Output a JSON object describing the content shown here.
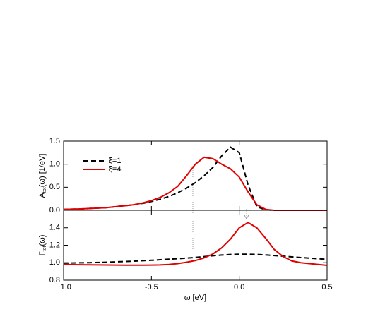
{
  "chart_data": [
    {
      "type": "line",
      "ylabel": {
        "main": "A",
        "sub": "tot",
        "rest": "(ω) [1/eV]"
      },
      "x": [
        -1.0,
        -0.95,
        -0.9,
        -0.85,
        -0.8,
        -0.75,
        -0.7,
        -0.65,
        -0.6,
        -0.55,
        -0.5,
        -0.45,
        -0.4,
        -0.35,
        -0.3,
        -0.25,
        -0.2,
        -0.15,
        -0.1,
        -0.05,
        0.0,
        0.05,
        0.1,
        0.15,
        0.2,
        0.25,
        0.3,
        0.35,
        0.4,
        0.45,
        0.5
      ],
      "series": [
        {
          "name": "ξ=1",
          "color": "#000000",
          "dash": true,
          "values": [
            0.02,
            0.025,
            0.03,
            0.04,
            0.05,
            0.06,
            0.08,
            0.1,
            0.12,
            0.15,
            0.19,
            0.24,
            0.3,
            0.38,
            0.48,
            0.6,
            0.75,
            0.93,
            1.18,
            1.37,
            1.25,
            0.55,
            0.08,
            0.01,
            0,
            0,
            0,
            0,
            0,
            0,
            0
          ]
        },
        {
          "name": "ξ=4",
          "color": "#e00000",
          "dash": false,
          "values": [
            0.02,
            0.025,
            0.03,
            0.04,
            0.05,
            0.06,
            0.08,
            0.1,
            0.12,
            0.16,
            0.21,
            0.28,
            0.38,
            0.52,
            0.75,
            1.0,
            1.15,
            1.12,
            1.0,
            0.9,
            0.72,
            0.4,
            0.12,
            0.02,
            0,
            0,
            0,
            0,
            0,
            0,
            0
          ]
        }
      ],
      "xlim": [
        -1.0,
        0.5
      ],
      "xticks": [
        {
          "value": -1,
          "label": "−1.0"
        },
        -0.5,
        {
          "value": 0,
          "label": "0.0"
        },
        0.5
      ],
      "ylim": [
        0,
        1.5
      ],
      "yticks": [
        {
          "value": 0,
          "label": "0.0"
        },
        0.5,
        {
          "value": 1,
          "label": "1.0"
        },
        1.5
      ],
      "legend": "upper left"
    },
    {
      "type": "line",
      "xlabel": "ω [eV]",
      "ylabel": {
        "main": "Γ",
        "sub": "tot",
        "rest": "(ω)"
      },
      "x": [
        -1.0,
        -0.95,
        -0.9,
        -0.85,
        -0.8,
        -0.75,
        -0.7,
        -0.65,
        -0.6,
        -0.55,
        -0.5,
        -0.45,
        -0.4,
        -0.35,
        -0.3,
        -0.25,
        -0.2,
        -0.15,
        -0.1,
        -0.05,
        0.0,
        0.05,
        0.1,
        0.15,
        0.2,
        0.25,
        0.3,
        0.35,
        0.4,
        0.45,
        0.5
      ],
      "series": [
        {
          "color": "#000000",
          "dash": true,
          "values": [
            0.995,
            0.997,
            0.999,
            1.0,
            1.003,
            1.006,
            1.01,
            1.014,
            1.018,
            1.023,
            1.028,
            1.034,
            1.04,
            1.046,
            1.053,
            1.06,
            1.07,
            1.08,
            1.088,
            1.094,
            1.097,
            1.097,
            1.094,
            1.089,
            1.082,
            1.075,
            1.067,
            1.059,
            1.052,
            1.045,
            1.038
          ]
        },
        {
          "color": "#e00000",
          "dash": false,
          "values": [
            0.98,
            0.978,
            0.977,
            0.976,
            0.975,
            0.974,
            0.973,
            0.972,
            0.972,
            0.972,
            0.973,
            0.975,
            0.98,
            0.99,
            1.005,
            1.025,
            1.055,
            1.1,
            1.17,
            1.27,
            1.4,
            1.46,
            1.4,
            1.28,
            1.15,
            1.07,
            1.02,
            1.0,
            0.99,
            0.98,
            0.97
          ]
        }
      ],
      "xlim": [
        -1.0,
        0.5
      ],
      "xticks": [
        {
          "value": -1,
          "label": "−1.0"
        },
        -0.5,
        {
          "value": 0,
          "label": "0.0"
        },
        0.5
      ],
      "ylim": [
        0.8,
        1.6
      ],
      "yticks": [
        0.8,
        {
          "value": 1,
          "label": "1.0"
        },
        1.2,
        1.4
      ]
    }
  ]
}
